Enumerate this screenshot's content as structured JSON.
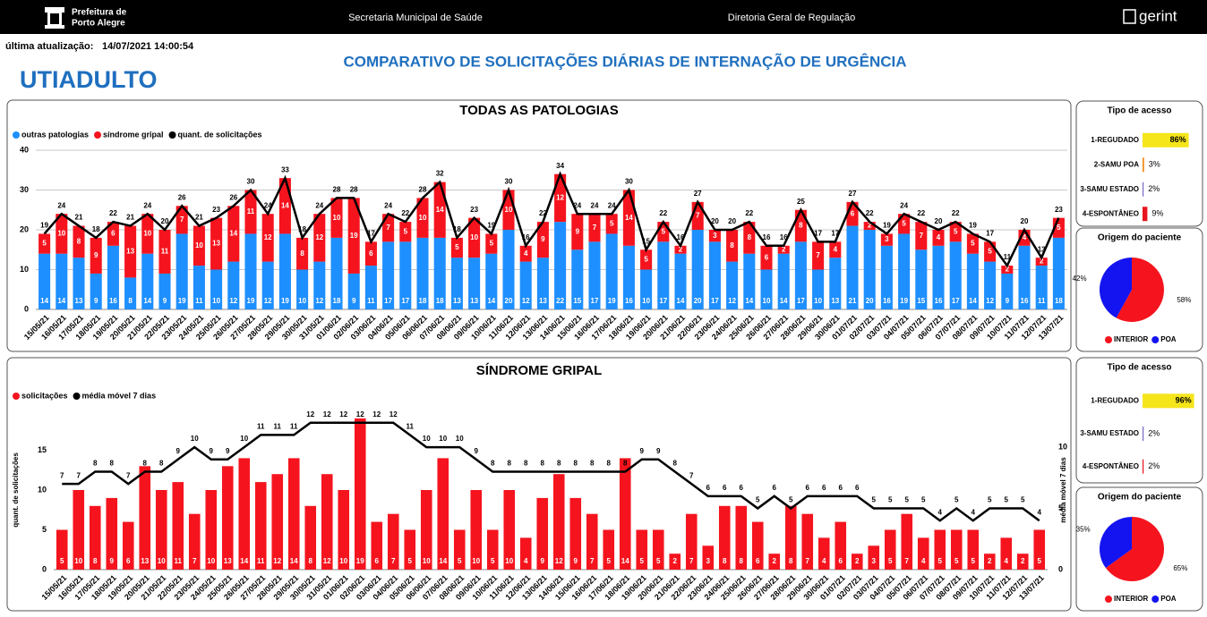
{
  "header": {
    "org_line1": "Prefeitura de",
    "org_line2": "Porto Alegre",
    "secretaria": "Secretaria Municipal de Saúde",
    "diretoria": "Diretoria Geral de Regulação",
    "brand": "gerint",
    "update_label": "última atualização:",
    "update_value": "14/07/2021 14:00:54",
    "unit": "UTIADULTO",
    "page_title": "COMPARATIVO DE SOLICITAÇÕES DIÁRIAS DE INTERNAÇÃO DE URGÊNCIA"
  },
  "chart_data": [
    {
      "type": "bar",
      "title": "TODAS AS PATOLOGIAS",
      "stacked": true,
      "categories": [
        "15/05/21",
        "16/05/21",
        "17/05/21",
        "18/05/21",
        "19/05/21",
        "20/05/21",
        "21/05/21",
        "22/05/21",
        "23/05/21",
        "24/05/21",
        "25/05/21",
        "26/05/21",
        "27/05/21",
        "28/05/21",
        "29/05/21",
        "30/05/21",
        "31/05/21",
        "01/06/21",
        "02/06/21",
        "03/06/21",
        "04/06/21",
        "05/06/21",
        "06/06/21",
        "07/06/21",
        "08/06/21",
        "09/06/21",
        "10/06/21",
        "11/06/21",
        "12/06/21",
        "13/06/21",
        "14/06/21",
        "15/06/21",
        "16/06/21",
        "17/06/21",
        "18/06/21",
        "19/06/21",
        "20/06/21",
        "21/06/21",
        "22/06/21",
        "23/06/21",
        "24/06/21",
        "25/06/21",
        "26/06/21",
        "27/06/21",
        "28/06/21",
        "29/06/21",
        "30/06/21",
        "01/07/21",
        "02/07/21",
        "03/07/21",
        "04/07/21",
        "05/07/21",
        "06/07/21",
        "07/07/21",
        "08/07/21",
        "09/07/21",
        "10/07/21",
        "11/07/21",
        "12/07/21",
        "13/07/21"
      ],
      "series": [
        {
          "name": "outras patologias",
          "color": "#1e8fff",
          "values": [
            14,
            14,
            13,
            9,
            16,
            8,
            14,
            9,
            19,
            11,
            10,
            12,
            19,
            12,
            19,
            10,
            12,
            18,
            9,
            11,
            17,
            17,
            18,
            18,
            13,
            13,
            14,
            20,
            12,
            13,
            22,
            15,
            17,
            19,
            16,
            10,
            17,
            14,
            20,
            17,
            12,
            14,
            10,
            14,
            17,
            10,
            13,
            21,
            20,
            16,
            19,
            15,
            16,
            17,
            14,
            12,
            9,
            16,
            11,
            18
          ]
        },
        {
          "name": "síndrome gripal",
          "color": "#f5141e",
          "values": [
            5,
            10,
            8,
            9,
            6,
            13,
            10,
            11,
            7,
            10,
            13,
            14,
            11,
            12,
            14,
            8,
            12,
            10,
            19,
            6,
            7,
            5,
            10,
            14,
            5,
            10,
            5,
            10,
            4,
            9,
            12,
            9,
            7,
            5,
            14,
            5,
            5,
            2,
            7,
            3,
            8,
            8,
            6,
            2,
            8,
            7,
            4,
            6,
            2,
            3,
            5,
            7,
            4,
            5,
            5,
            5,
            2,
            4,
            2,
            5
          ]
        },
        {
          "name": "quant. de solicitações",
          "type": "line",
          "color": "#000000",
          "values": [
            19,
            24,
            21,
            18,
            22,
            21,
            24,
            20,
            26,
            21,
            23,
            26,
            30,
            24,
            33,
            18,
            24,
            28,
            28,
            17,
            24,
            22,
            28,
            32,
            18,
            23,
            19,
            30,
            16,
            22,
            34,
            24,
            24,
            24,
            30,
            15,
            22,
            16,
            27,
            20,
            20,
            22,
            16,
            16,
            25,
            17,
            17,
            27,
            22,
            19,
            24,
            22,
            20,
            22,
            19,
            17,
            11,
            20,
            13,
            23
          ]
        }
      ],
      "ylim": [
        0,
        40
      ],
      "yticks": [
        0,
        10,
        20,
        30,
        40
      ],
      "grid": true
    },
    {
      "type": "barh",
      "title": "Tipo de acesso",
      "categories": [
        "1-REGUDADO",
        "2-SAMU POA",
        "3-SAMU ESTADO",
        "4-ESPONTÂNEO"
      ],
      "values": [
        86,
        3,
        2,
        9
      ],
      "value_labels": [
        "86%",
        "3%",
        "2%",
        "9%"
      ],
      "colors": [
        "#f5e51b",
        "#f0901e",
        "#7b68c8",
        "#e8141e"
      ],
      "xlim": [
        0,
        100
      ]
    },
    {
      "type": "pie",
      "title": "Origem do paciente",
      "categories": [
        "INTERIOR",
        "POA"
      ],
      "values": [
        58,
        42
      ],
      "value_labels": [
        "58%",
        "42%"
      ],
      "colors": [
        "#f5141e",
        "#1414f0"
      ]
    },
    {
      "type": "bar",
      "title": "SÍNDROME GRIPAL",
      "categories": [
        "15/05/21",
        "16/05/21",
        "17/05/21",
        "18/05/21",
        "19/05/21",
        "20/05/21",
        "21/05/21",
        "22/05/21",
        "23/05/21",
        "24/05/21",
        "25/05/21",
        "26/05/21",
        "27/05/21",
        "28/05/21",
        "29/05/21",
        "30/05/21",
        "31/05/21",
        "01/06/21",
        "02/06/21",
        "03/06/21",
        "04/06/21",
        "05/06/21",
        "06/06/21",
        "07/06/21",
        "08/06/21",
        "09/06/21",
        "10/06/21",
        "11/06/21",
        "12/06/21",
        "13/06/21",
        "14/06/21",
        "15/06/21",
        "16/06/21",
        "17/06/21",
        "18/06/21",
        "19/06/21",
        "20/06/21",
        "21/06/21",
        "22/06/21",
        "23/06/21",
        "24/06/21",
        "25/06/21",
        "26/06/21",
        "27/06/21",
        "28/06/21",
        "29/06/21",
        "30/06/21",
        "01/07/21",
        "02/07/21",
        "03/07/21",
        "04/07/21",
        "05/07/21",
        "06/07/21",
        "07/07/21",
        "08/07/21",
        "09/07/21",
        "10/07/21",
        "11/07/21",
        "12/07/21",
        "13/07/21"
      ],
      "series": [
        {
          "name": "solicitações",
          "color": "#f5141e",
          "values": [
            5,
            10,
            8,
            9,
            6,
            13,
            10,
            11,
            7,
            10,
            13,
            14,
            11,
            12,
            14,
            8,
            12,
            10,
            19,
            6,
            7,
            5,
            10,
            14,
            5,
            10,
            5,
            10,
            4,
            9,
            12,
            9,
            7,
            5,
            14,
            5,
            5,
            2,
            7,
            3,
            8,
            8,
            6,
            2,
            8,
            7,
            4,
            6,
            2,
            3,
            5,
            7,
            4,
            5,
            5,
            5,
            2,
            4,
            2,
            5
          ]
        },
        {
          "name": "média móvel 7 dias",
          "type": "line",
          "axis": "y2",
          "color": "#000000",
          "values": [
            7,
            7,
            8,
            8,
            7,
            8,
            8,
            9,
            10,
            9,
            9,
            10,
            11,
            11,
            11,
            12,
            12,
            12,
            12,
            12,
            12,
            11,
            10,
            10,
            10,
            9,
            8,
            8,
            8,
            8,
            8,
            8,
            8,
            8,
            8,
            9,
            9,
            8,
            7,
            6,
            6,
            6,
            5,
            6,
            5,
            6,
            6,
            6,
            6,
            5,
            5,
            5,
            5,
            4,
            5,
            4,
            5,
            5,
            5,
            4
          ]
        }
      ],
      "ylabel": "quant. de solicitações",
      "y2label": "média móvel 7 dias",
      "ylim": [
        0,
        20
      ],
      "yticks": [
        0,
        5,
        10,
        15
      ],
      "y2lim": [
        0,
        13
      ],
      "y2ticks": [
        0,
        5,
        10
      ],
      "grid": false
    },
    {
      "type": "barh",
      "title": "Tipo de acesso",
      "categories": [
        "1-REGUDADO",
        "3-SAMU ESTADO",
        "4-ESPONTÂNEO"
      ],
      "values": [
        96,
        2,
        2
      ],
      "value_labels": [
        "96%",
        "2%",
        "2%"
      ],
      "colors": [
        "#f5e51b",
        "#7b68c8",
        "#e8141e"
      ],
      "xlim": [
        0,
        100
      ]
    },
    {
      "type": "pie",
      "title": "Origem do paciente",
      "categories": [
        "INTERIOR",
        "POA"
      ],
      "values": [
        65,
        35
      ],
      "value_labels": [
        "65%",
        "35%"
      ],
      "colors": [
        "#f5141e",
        "#1414f0"
      ]
    }
  ]
}
